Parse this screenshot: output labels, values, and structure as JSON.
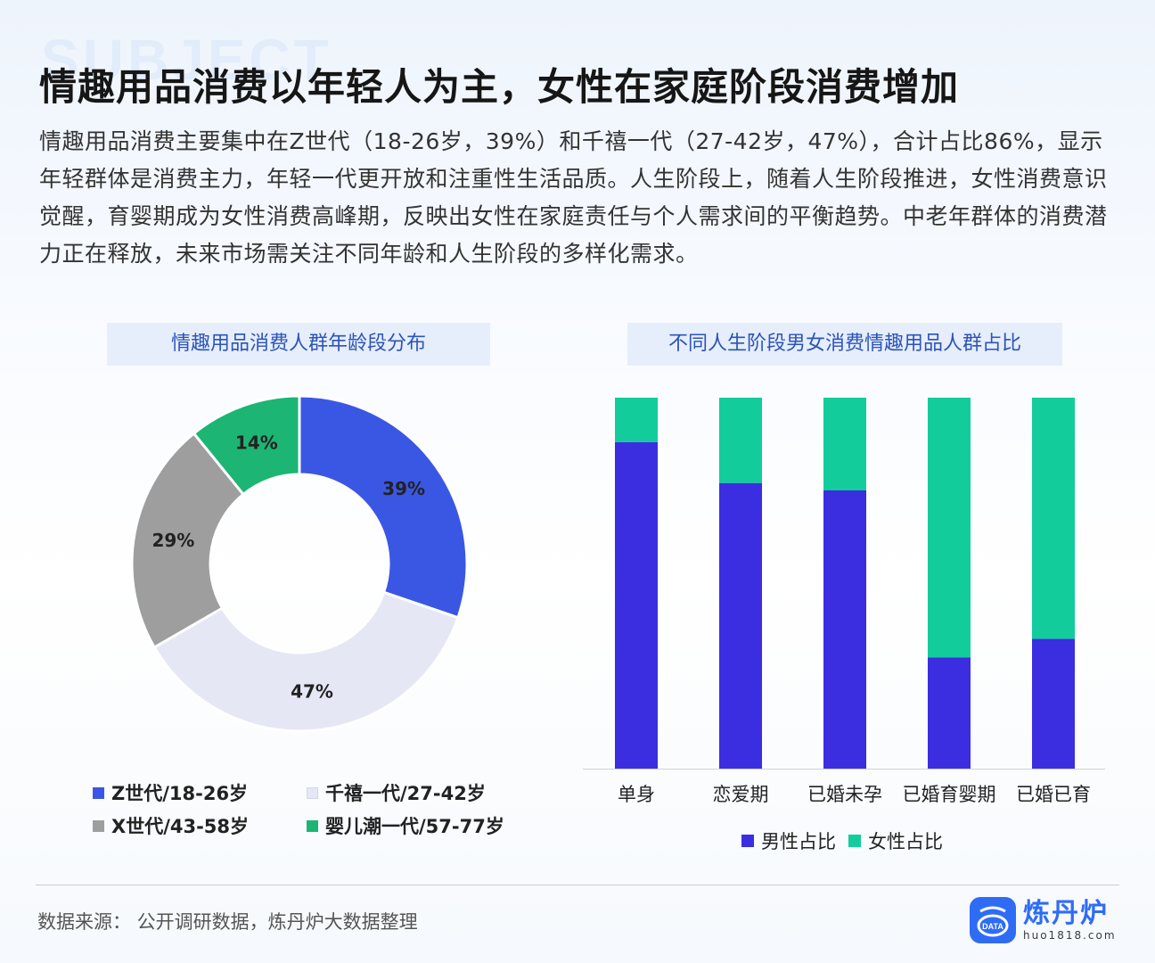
{
  "background_word": "SUBJECT",
  "title": "情趣用品消费以年轻人为主，女性在家庭阶段消费增加",
  "description": "情趣用品消费主要集中在Z世代（18-26岁，39%）和千禧一代（27-42岁，47%），合计占比86%，显示年轻群体是消费主力，年轻一代更开放和注重性生活品质。人生阶段上，随着人生阶段推进，女性消费意识觉醒，育婴期成为女性消费高峰期，反映出女性在家庭责任与个人需求间的平衡趋势。中老年群体的消费潜力正在释放，未来市场需关注不同年龄和人生阶段的多样化需求。",
  "source": "数据来源：  公开调研数据，炼丹炉大数据整理",
  "logo": {
    "name": "炼丹炉",
    "url": "huo1818.com",
    "badge": "DATA"
  },
  "chart_data": [
    {
      "type": "pie",
      "title": "情趣用品消费人群年龄段分布",
      "donut": true,
      "slices": [
        {
          "label": "Z世代/18-26岁",
          "value": 39,
          "display": "39%",
          "color": "#3a57e4"
        },
        {
          "label": "千禧一代/27-42岁",
          "value": 47,
          "display": "47%",
          "color": "#e6e7f5"
        },
        {
          "label": "X世代/43-58岁",
          "value": 29,
          "display": "29%",
          "color": "#9e9e9e"
        },
        {
          "label": "婴儿潮一代/57-77岁",
          "value": 14,
          "display": "14%",
          "color": "#1cb574"
        }
      ],
      "legend_order": [
        0,
        1,
        2,
        3
      ]
    },
    {
      "type": "bar",
      "stacked": true,
      "percent": true,
      "title": "不同人生阶段男女消费情趣用品人群占比",
      "categories": [
        "单身",
        "恋爱期",
        "已婚未孕",
        "已婚育婴期",
        "已婚已育"
      ],
      "series": [
        {
          "name": "男性占比",
          "color": "#3a2ee0",
          "values": [
            88,
            77,
            75,
            30,
            35
          ]
        },
        {
          "name": "女性占比",
          "color": "#13cc9c",
          "values": [
            12,
            23,
            25,
            70,
            65
          ]
        }
      ],
      "ylim": [
        0,
        100
      ]
    }
  ]
}
